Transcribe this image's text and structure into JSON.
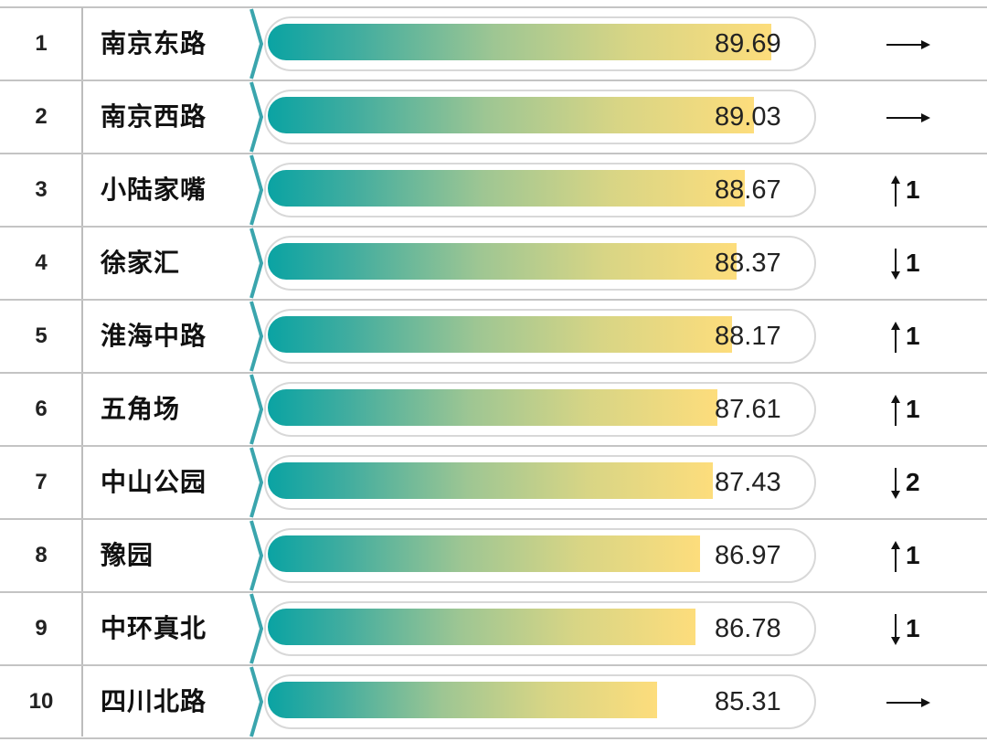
{
  "chart_data": {
    "type": "bar",
    "orientation": "horizontal",
    "ranks": [
      "1",
      "2",
      "3",
      "4",
      "5",
      "6",
      "7",
      "8",
      "9",
      "10"
    ],
    "categories": [
      "南京东路",
      "南京西路",
      "小陆家嘴",
      "徐家汇",
      "淮海中路",
      "五角场",
      "中山公园",
      "豫园",
      "中环真北",
      "四川北路"
    ],
    "values": [
      89.69,
      89.03,
      88.67,
      88.37,
      88.17,
      87.61,
      87.43,
      86.97,
      86.78,
      85.31
    ],
    "value_labels": [
      "89.69",
      "89.03",
      "88.67",
      "88.37",
      "88.17",
      "87.61",
      "87.43",
      "86.97",
      "86.78",
      "85.31"
    ],
    "rank_change": [
      {
        "direction": "same",
        "amount": ""
      },
      {
        "direction": "same",
        "amount": ""
      },
      {
        "direction": "up",
        "amount": "1"
      },
      {
        "direction": "down",
        "amount": "1"
      },
      {
        "direction": "up",
        "amount": "1"
      },
      {
        "direction": "up",
        "amount": "1"
      },
      {
        "direction": "down",
        "amount": "2"
      },
      {
        "direction": "up",
        "amount": "1"
      },
      {
        "direction": "down",
        "amount": "1"
      },
      {
        "direction": "same",
        "amount": ""
      }
    ],
    "xlim": [
      70.45,
      91.39
    ],
    "colors": {
      "gradient_start": "#0aa3a3",
      "gradient_end": "#fddd7c",
      "chevron": "#3aa5ad"
    }
  }
}
